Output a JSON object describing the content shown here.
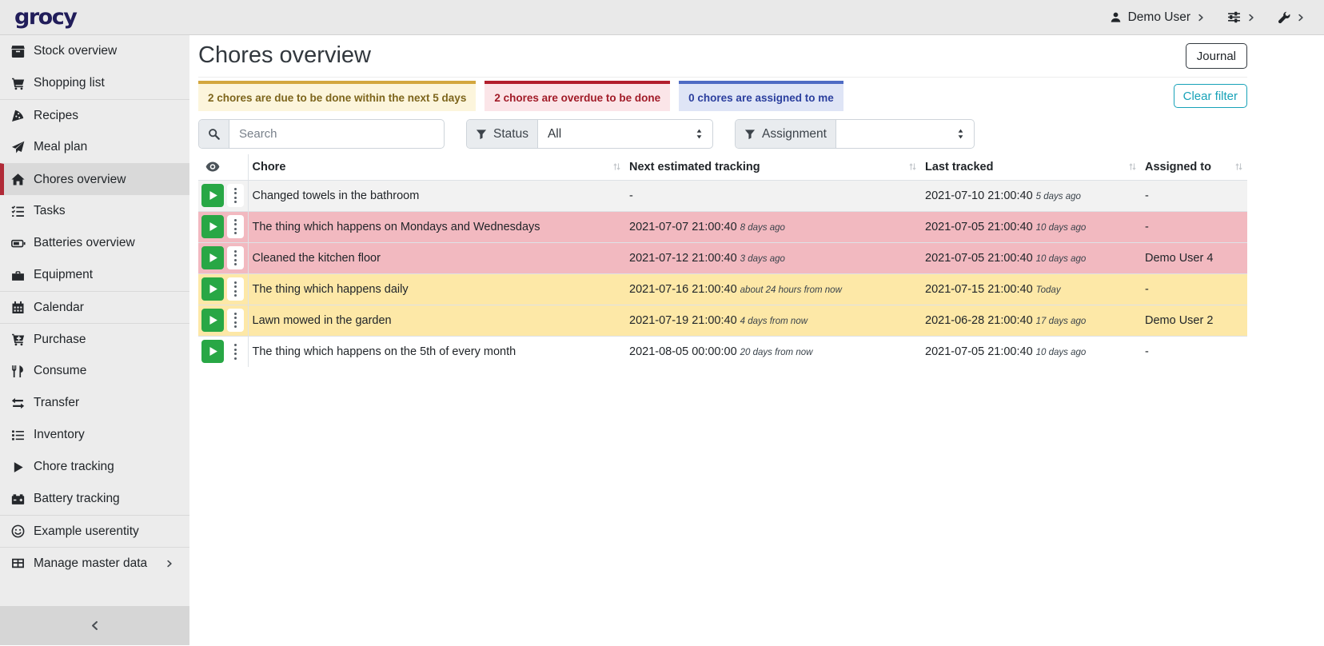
{
  "topbar": {
    "logo": "grocy",
    "user_label": "Demo User"
  },
  "sidebar": {
    "items": [
      {
        "label": "Stock overview",
        "icon": "box"
      },
      {
        "label": "Shopping list",
        "icon": "cart"
      },
      {
        "label": "Recipes",
        "icon": "pizza",
        "divider": true
      },
      {
        "label": "Meal plan",
        "icon": "plane"
      },
      {
        "label": "Chores overview",
        "icon": "home",
        "divider": true,
        "active": true
      },
      {
        "label": "Tasks",
        "icon": "tasks"
      },
      {
        "label": "Batteries overview",
        "icon": "battery"
      },
      {
        "label": "Equipment",
        "icon": "toolbox"
      },
      {
        "label": "Calendar",
        "icon": "calendar",
        "divider": true
      },
      {
        "label": "Purchase",
        "icon": "cartplus",
        "divider": true
      },
      {
        "label": "Consume",
        "icon": "utensils"
      },
      {
        "label": "Transfer",
        "icon": "exchange"
      },
      {
        "label": "Inventory",
        "icon": "list"
      },
      {
        "label": "Chore tracking",
        "icon": "play"
      },
      {
        "label": "Battery tracking",
        "icon": "carbattery"
      },
      {
        "label": "Example userentity",
        "icon": "smile",
        "divider": true
      },
      {
        "label": "Manage master data",
        "icon": "tableicon",
        "divider": true,
        "submenu": true
      }
    ]
  },
  "page": {
    "title": "Chores overview",
    "journal_label": "Journal"
  },
  "filters": {
    "due_soon": "2 chores are due to be done within the next 5 days",
    "overdue": "2 chores are overdue to be done",
    "assigned": "0 chores are assigned to me",
    "clear_label": "Clear filter"
  },
  "search": {
    "placeholder": "Search"
  },
  "status_filter": {
    "label": "Status",
    "value": "All"
  },
  "assignment_filter": {
    "label": "Assignment",
    "value": ""
  },
  "table": {
    "columns": {
      "chore": "Chore",
      "next": "Next estimated tracking",
      "last": "Last tracked",
      "assigned": "Assigned to"
    },
    "rows": [
      {
        "chore": "Changed towels in the bathroom",
        "next": "-",
        "next_rel": "",
        "last": "2021-07-10 21:00:40",
        "last_rel": "5 days ago",
        "assigned": "-",
        "state": "striped"
      },
      {
        "chore": "The thing which happens on Mondays and Wednesdays",
        "next": "2021-07-07 21:00:40",
        "next_rel": "8 days ago",
        "last": "2021-07-05 21:00:40",
        "last_rel": "10 days ago",
        "assigned": "-",
        "state": "danger"
      },
      {
        "chore": "Cleaned the kitchen floor",
        "next": "2021-07-12 21:00:40",
        "next_rel": "3 days ago",
        "last": "2021-07-05 21:00:40",
        "last_rel": "10 days ago",
        "assigned": "Demo User 4",
        "state": "danger"
      },
      {
        "chore": "The thing which happens daily",
        "next": "2021-07-16 21:00:40",
        "next_rel": "about 24 hours from now",
        "last": "2021-07-15 21:00:40",
        "last_rel": "Today",
        "assigned": "-",
        "state": "warning"
      },
      {
        "chore": "Lawn mowed in the garden",
        "next": "2021-07-19 21:00:40",
        "next_rel": "4 days from now",
        "last": "2021-06-28 21:00:40",
        "last_rel": "17 days ago",
        "assigned": "Demo User 2",
        "state": "warning"
      },
      {
        "chore": "The thing which happens on the 5th of every month",
        "next": "2021-08-05 00:00:00",
        "next_rel": "20 days from now",
        "last": "2021-07-05 21:00:40",
        "last_rel": "10 days ago",
        "assigned": "-",
        "state": "plain"
      }
    ]
  },
  "colors": {
    "accent_red": "#b02a37",
    "play_green": "#28a745",
    "clear_filter_teal": "#17a2b8",
    "overdue_row": "#f2b9c0",
    "due_row": "#fde8a7",
    "due_badge_border": "#d3a73e",
    "overdue_badge_border": "#b21f2d",
    "assigned_badge_border": "#4e6bc4",
    "logo_navy": "#211d5a"
  }
}
